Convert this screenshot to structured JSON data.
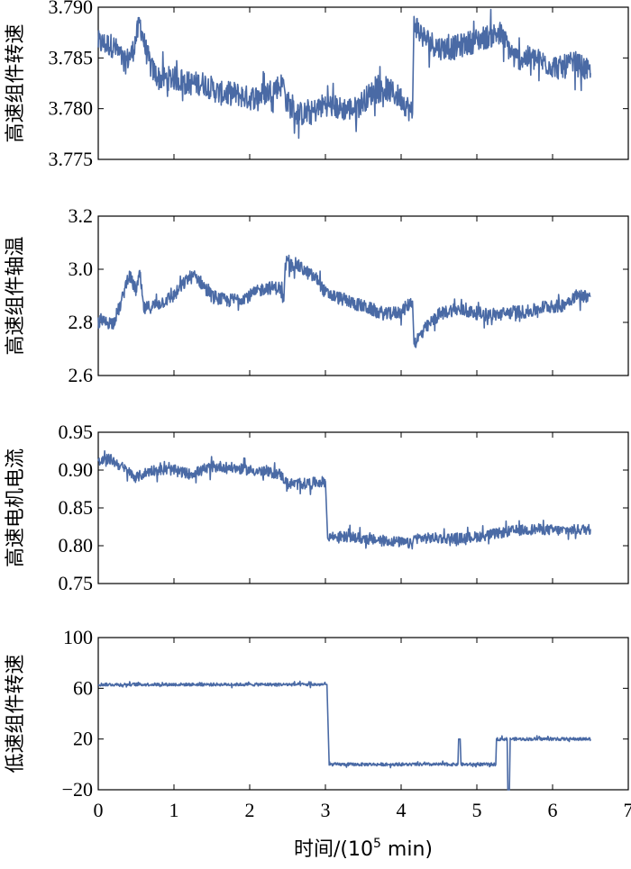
{
  "line_color": "#4a6aa5",
  "x_axis": {
    "label_prefix": "时间/(10",
    "label_exponent": "5",
    "label_suffix": " min)",
    "ticks": [
      "0",
      "1",
      "2",
      "3",
      "4",
      "5",
      "6",
      "7"
    ]
  },
  "chart_data": [
    {
      "type": "line",
      "ylabel": "高速组件转速",
      "xlim": [
        0,
        7
      ],
      "ylim": [
        3.775,
        3.79
      ],
      "yticks": [
        "3.790",
        "3.785",
        "3.780",
        "3.775"
      ],
      "series": [
        {
          "noise": 0.0012,
          "x": [
            0,
            0.2,
            0.35,
            0.45,
            0.55,
            0.62,
            0.7,
            0.8,
            1.0,
            1.2,
            1.4,
            1.6,
            1.8,
            2.0,
            2.2,
            2.45,
            2.47,
            2.6,
            2.8,
            3.0,
            3.2,
            3.4,
            3.6,
            3.8,
            4.0,
            4.15,
            4.17,
            4.3,
            4.5,
            4.7,
            4.9,
            5.1,
            5.3,
            5.5,
            5.7,
            5.9,
            6.1,
            6.3,
            6.5
          ],
          "y": [
            3.7865,
            3.7862,
            3.7845,
            3.7855,
            3.7885,
            3.786,
            3.784,
            3.783,
            3.783,
            3.7825,
            3.7825,
            3.7815,
            3.7815,
            3.781,
            3.7815,
            3.7825,
            3.781,
            3.7795,
            3.7795,
            3.7805,
            3.78,
            3.78,
            3.7815,
            3.782,
            3.781,
            3.7795,
            3.7885,
            3.787,
            3.786,
            3.786,
            3.7865,
            3.787,
            3.7875,
            3.785,
            3.785,
            3.7845,
            3.784,
            3.7845,
            3.7835
          ]
        }
      ]
    },
    {
      "type": "line",
      "ylabel": "高速组件轴温",
      "xlim": [
        0,
        7
      ],
      "ylim": [
        2.6,
        3.2
      ],
      "yticks": [
        "3.2",
        "3.0",
        "2.8",
        "2.6"
      ],
      "series": [
        {
          "noise": 0.025,
          "x": [
            0,
            0.2,
            0.3,
            0.4,
            0.5,
            0.55,
            0.6,
            0.8,
            1.0,
            1.2,
            1.3,
            1.5,
            1.7,
            2.0,
            2.2,
            2.4,
            2.45,
            2.47,
            2.6,
            2.8,
            2.9,
            3.0,
            3.2,
            3.4,
            3.6,
            3.8,
            4.0,
            4.15,
            4.17,
            4.3,
            4.5,
            4.7,
            4.9,
            5.1,
            5.3,
            5.5,
            5.7,
            5.9,
            6.1,
            6.3,
            6.5
          ],
          "y": [
            2.8,
            2.8,
            2.87,
            2.98,
            2.92,
            2.98,
            2.85,
            2.87,
            2.9,
            2.97,
            2.97,
            2.9,
            2.88,
            2.9,
            2.93,
            2.93,
            2.88,
            3.01,
            3.02,
            2.98,
            2.96,
            2.91,
            2.89,
            2.87,
            2.85,
            2.83,
            2.84,
            2.88,
            2.72,
            2.77,
            2.83,
            2.85,
            2.84,
            2.83,
            2.83,
            2.84,
            2.84,
            2.86,
            2.86,
            2.9,
            2.9
          ]
        }
      ]
    },
    {
      "type": "line",
      "ylabel": "高速电机电流",
      "xlim": [
        0,
        7
      ],
      "ylim": [
        0.75,
        0.95
      ],
      "yticks": [
        "0.95",
        "0.90",
        "0.85",
        "0.80",
        "0.75"
      ],
      "series": [
        {
          "noise": 0.007,
          "x": [
            0,
            0.15,
            0.3,
            0.5,
            0.7,
            1.0,
            1.2,
            1.4,
            1.6,
            2.0,
            2.4,
            2.5,
            2.7,
            3.0,
            3.03,
            3.05,
            3.3,
            3.6,
            3.9,
            4.15,
            4.17,
            4.4,
            4.8,
            5.0,
            5.2,
            5.5,
            5.8,
            6.1,
            6.5
          ],
          "y": [
            0.91,
            0.915,
            0.905,
            0.89,
            0.9,
            0.9,
            0.895,
            0.9,
            0.905,
            0.9,
            0.895,
            0.882,
            0.882,
            0.885,
            0.81,
            0.812,
            0.812,
            0.808,
            0.806,
            0.802,
            0.81,
            0.81,
            0.81,
            0.812,
            0.815,
            0.82,
            0.822,
            0.82,
            0.822
          ]
        }
      ]
    },
    {
      "type": "line",
      "ylabel": "低速组件转速",
      "xlim": [
        0,
        7
      ],
      "ylim": [
        -20,
        100
      ],
      "yticks": [
        "100",
        "60",
        "20",
        "−20"
      ],
      "series": [
        {
          "noise": 1.2,
          "x": [
            0,
            3.0,
            3.02,
            3.05,
            4.75,
            4.76,
            4.78,
            4.79,
            5.25,
            5.26,
            5.4,
            5.41,
            5.43,
            5.44,
            6.5
          ],
          "y": [
            63,
            63,
            63,
            0,
            0,
            20,
            20,
            0,
            0,
            20,
            20,
            -20,
            -20,
            20,
            20
          ]
        }
      ]
    }
  ]
}
